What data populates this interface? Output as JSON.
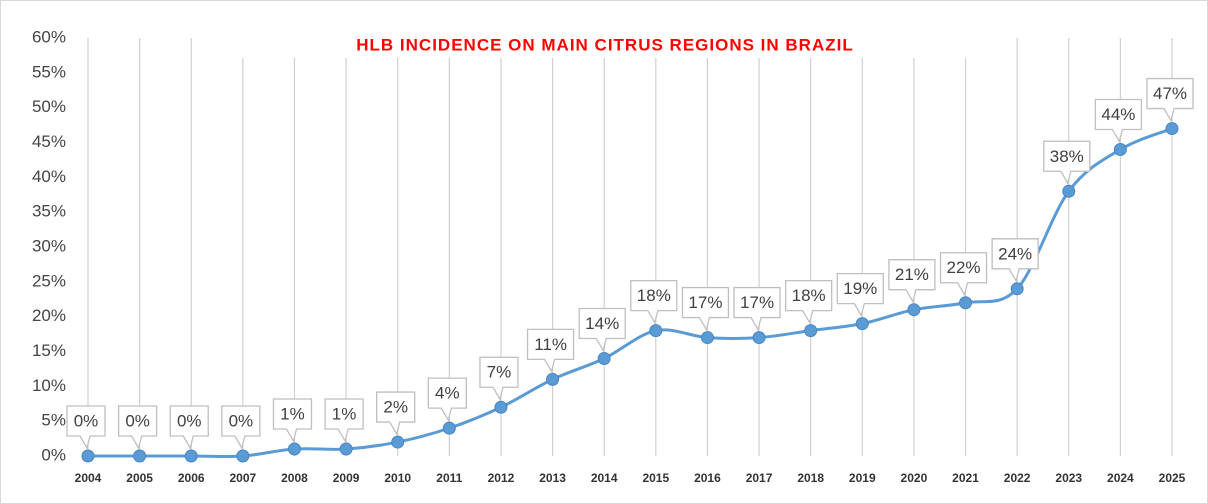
{
  "chart_data": {
    "type": "line",
    "title": "HLB INCIDENCE ON MAIN CITRUS REGIONS IN BRAZIL",
    "categories": [
      "2004",
      "2005",
      "2006",
      "2007",
      "2008",
      "2009",
      "2010",
      "2011",
      "2012",
      "2013",
      "2014",
      "2015",
      "2016",
      "2017",
      "2018",
      "2019",
      "2020",
      "2021",
      "2022",
      "2023",
      "2024",
      "2025"
    ],
    "values": [
      0,
      0,
      0,
      0,
      1,
      1,
      2,
      4,
      7,
      11,
      14,
      18,
      17,
      17,
      18,
      19,
      21,
      22,
      24,
      38,
      44,
      47
    ],
    "value_labels": [
      "0%",
      "0%",
      "0%",
      "0%",
      "1%",
      "1%",
      "2%",
      "4%",
      "7%",
      "11%",
      "14%",
      "18%",
      "17%",
      "17%",
      "18%",
      "19%",
      "21%",
      "22%",
      "24%",
      "38%",
      "44%",
      "47%"
    ],
    "color": "#5b9bd5",
    "ylim": [
      0,
      60
    ],
    "yticks": [
      {
        "value": 0,
        "label": "0%"
      },
      {
        "value": 5,
        "label": "5%"
      },
      {
        "value": 10,
        "label": "10%"
      },
      {
        "value": 15,
        "label": "15%"
      },
      {
        "value": 20,
        "label": "20%"
      },
      {
        "value": 25,
        "label": "25%"
      },
      {
        "value": 30,
        "label": "30%"
      },
      {
        "value": 35,
        "label": "35%"
      },
      {
        "value": 40,
        "label": "40%"
      },
      {
        "value": 45,
        "label": "45%"
      },
      {
        "value": 50,
        "label": "50%"
      },
      {
        "value": 55,
        "label": "55%"
      },
      {
        "value": 60,
        "label": "60%"
      }
    ]
  }
}
